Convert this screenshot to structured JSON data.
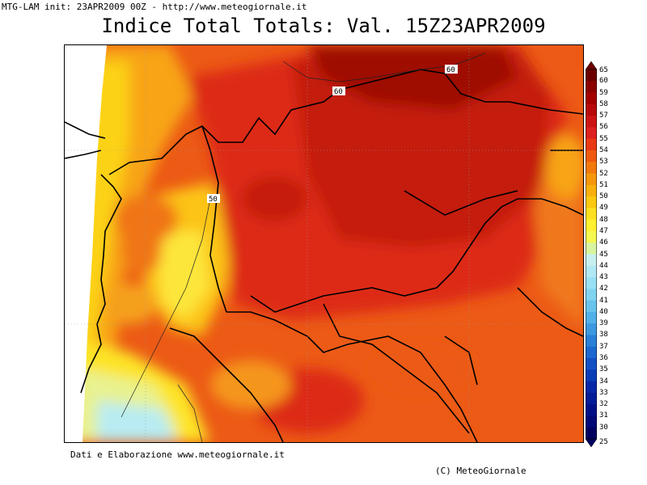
{
  "header": {
    "info": "MTG-LAM init: 23APR2009 00Z - http://www.meteogiornale.it"
  },
  "title": "Indice Total Totals: Val. 15Z23APR2009",
  "map": {
    "contour_labels": [
      "60",
      "60",
      "50"
    ]
  },
  "colorbar": {
    "labels": [
      "65",
      "60",
      "59",
      "58",
      "57",
      "56",
      "55",
      "54",
      "53",
      "52",
      "51",
      "50",
      "49",
      "48",
      "47",
      "46",
      "45",
      "44",
      "43",
      "42",
      "41",
      "40",
      "39",
      "38",
      "37",
      "36",
      "35",
      "34",
      "33",
      "32",
      "31",
      "30",
      "25"
    ],
    "colors": [
      "#6b0000",
      "#8b0000",
      "#a50000",
      "#b80a0a",
      "#cc1414",
      "#dd2020",
      "#e83a14",
      "#ef5a0e",
      "#f37a0c",
      "#f6960c",
      "#f9b00e",
      "#fcc810",
      "#fde020",
      "#fff030",
      "#f4f850",
      "#d8f4a0",
      "#c8f0f0",
      "#b0e8f4",
      "#98e0f4",
      "#80d4f0",
      "#68c4ec",
      "#50b0e8",
      "#3c98e0",
      "#2a80d8",
      "#1c68d0",
      "#1250c4",
      "#0a3cb8",
      "#0628a8",
      "#041c98",
      "#021088",
      "#010878",
      "#000060"
    ]
  },
  "footer": {
    "credit": "Dati e Elaborazione www.meteogiornale.it",
    "copyright": "(C) MeteoGiornale"
  }
}
